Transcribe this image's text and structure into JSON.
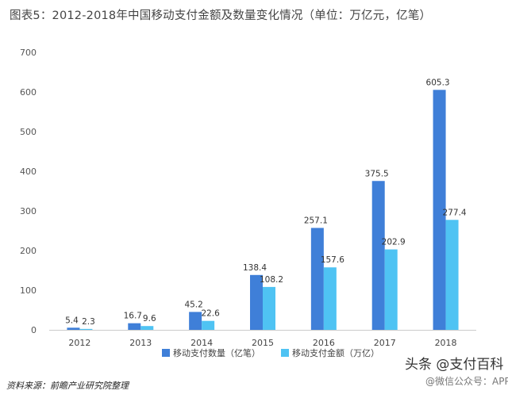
{
  "chart_data": {
    "type": "bar",
    "title": "图表5：2012-2018年中国移动支付金额及数量变化情况（单位：万亿元，亿笔）",
    "categories": [
      "2012",
      "2013",
      "2014",
      "2015",
      "2016",
      "2017",
      "2018"
    ],
    "series": [
      {
        "name": "移动支付数量（亿笔）",
        "color": "#3f7fd8",
        "values": [
          5.4,
          16.7,
          45.2,
          138.4,
          257.1,
          375.5,
          605.3
        ]
      },
      {
        "name": "移动支付金额（万亿）",
        "color": "#4fc3f3",
        "values": [
          2.3,
          9.6,
          22.6,
          108.2,
          157.6,
          202.9,
          277.4
        ]
      }
    ],
    "yticks": [
      0,
      100,
      200,
      300,
      400,
      500,
      600,
      700
    ],
    "ylim": [
      0,
      700
    ],
    "grid": false,
    "legend": "bottom-center",
    "source": "资料来源：前瞻产业研究院整理"
  },
  "watermark": {
    "main": "头条 @支付百科",
    "sub": "@微信公众号：APP"
  }
}
